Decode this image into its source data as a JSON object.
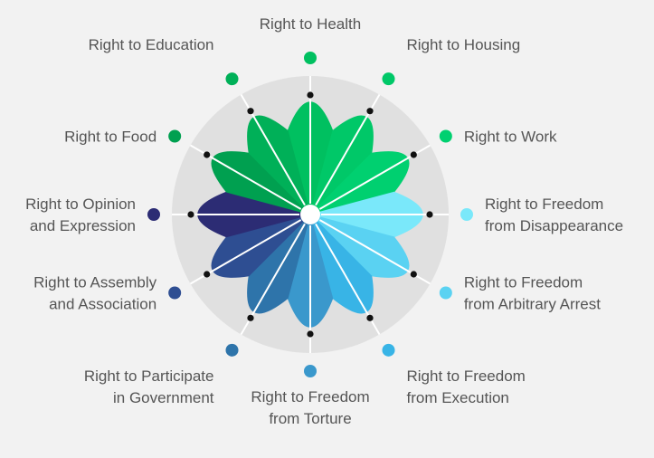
{
  "chart_data": {
    "type": "radial",
    "axis_labels": [
      [
        "Right to Health"
      ],
      [
        "Right to Housing"
      ],
      [
        "Right to Work"
      ],
      [
        "Right to Freedom",
        "from Disappearance"
      ],
      [
        "Right to Freedom",
        "from Arbitrary Arrest"
      ],
      [
        "Right to Freedom",
        "from Execution"
      ],
      [
        "Right to Freedom",
        "from Torture"
      ],
      [
        "Right to Participate",
        "in Government"
      ],
      [
        "Right to Assembly",
        "and Association"
      ],
      [
        "Right to Opinion",
        "and Expression"
      ],
      [
        "Right to Food"
      ],
      [
        "Right to Education"
      ]
    ],
    "colors": [
      "#00c060",
      "#00c868",
      "#00d070",
      "#7ae8fa",
      "#5ad2f2",
      "#38b4e6",
      "#3a98cc",
      "#2e74aa",
      "#2e4e92",
      "#2c2c74",
      "#00a050",
      "#00b058"
    ],
    "values": [
      1,
      1,
      1,
      1,
      1,
      1,
      1,
      1,
      1,
      1,
      1,
      1
    ],
    "ylim": [
      0,
      1
    ],
    "background_color": "#f2f2f2",
    "ring_color": "#e0e0e0"
  }
}
